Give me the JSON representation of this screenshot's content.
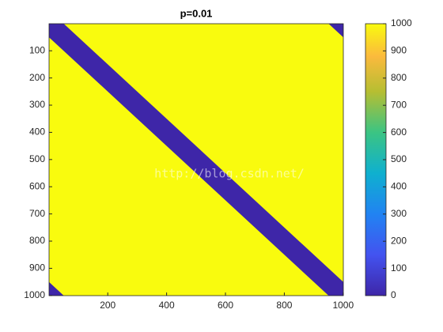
{
  "chart_data": {
    "type": "heatmap",
    "title": "p=0.01",
    "xlim": [
      0.5,
      1000.5
    ],
    "ylim": [
      0.5,
      1000.5
    ],
    "y_reversed": true,
    "xticks": [
      200,
      400,
      600,
      800,
      1000
    ],
    "yticks": [
      100,
      200,
      300,
      400,
      500,
      600,
      700,
      800,
      900,
      1000
    ],
    "background": 1000,
    "band": {
      "value": 0,
      "halfwidth": 50
    },
    "clim": [
      0,
      1000
    ],
    "cticks": [
      0,
      100,
      200,
      300,
      400,
      500,
      600,
      700,
      800,
      900,
      1000
    ],
    "annotation": "http://blog.csdn.net/"
  }
}
